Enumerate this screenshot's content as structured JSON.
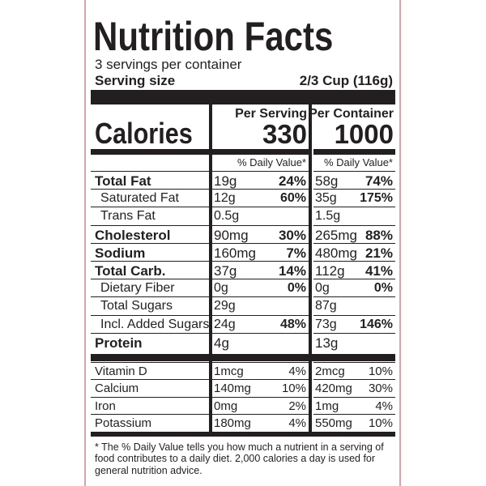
{
  "title": "Nutrition Facts",
  "servings": "3 servings per container",
  "serving_size": {
    "label": "Serving size",
    "value": "2/3 Cup (116g)"
  },
  "calories_label": "Calories",
  "columns": [
    {
      "heading": "Per Serving",
      "calories": "330",
      "dv_header": "% Daily Value*"
    },
    {
      "heading": "Per Container",
      "calories": "1000",
      "dv_header": "% Daily Value*"
    }
  ],
  "nutrients": [
    {
      "label": "Total Fat",
      "bold": true,
      "indent": false,
      "serving": [
        "19g",
        "24%"
      ],
      "container": [
        "58g",
        "74%"
      ]
    },
    {
      "label": "Saturated Fat",
      "bold": false,
      "indent": true,
      "serving": [
        "12g",
        "60%"
      ],
      "container": [
        "35g",
        "175%"
      ]
    },
    {
      "label": "Trans Fat",
      "bold": false,
      "indent": true,
      "serving": [
        "0.5g"
      ],
      "container": [
        "1.5g"
      ]
    },
    {
      "label": "Cholesterol",
      "bold": true,
      "indent": false,
      "serving": [
        "90mg",
        "30%"
      ],
      "container": [
        "265mg",
        "88%"
      ]
    },
    {
      "label": "Sodium",
      "bold": true,
      "indent": false,
      "serving": [
        "160mg",
        "7%"
      ],
      "container": [
        "480mg",
        "21%"
      ]
    },
    {
      "label": "Total Carb.",
      "bold": true,
      "indent": false,
      "serving": [
        "37g",
        "14%"
      ],
      "container": [
        "112g",
        "41%"
      ]
    },
    {
      "label": "Dietary Fiber",
      "bold": false,
      "indent": true,
      "serving": [
        "0g",
        "0%"
      ],
      "container": [
        "0g",
        "0%"
      ]
    },
    {
      "label": "Total Sugars",
      "bold": false,
      "indent": true,
      "serving": [
        "29g"
      ],
      "container": [
        "87g"
      ]
    },
    {
      "label": "Incl. Added Sugars",
      "bold": false,
      "indent": true,
      "serving": [
        "24g",
        "48%"
      ],
      "container": [
        "73g",
        "146%"
      ]
    },
    {
      "label": "Protein",
      "bold": true,
      "indent": false,
      "serving": [
        "4g"
      ],
      "container": [
        "13g"
      ]
    }
  ],
  "vitamins": [
    {
      "label": "Vitamin D",
      "serving": [
        "1mcg",
        "4%"
      ],
      "container": [
        "2mcg",
        "10%"
      ]
    },
    {
      "label": "Calcium",
      "serving": [
        "140mg",
        "10%"
      ],
      "container": [
        "420mg",
        "30%"
      ]
    },
    {
      "label": "Iron",
      "serving": [
        "0mg",
        "2%"
      ],
      "container": [
        "1mg",
        "4%"
      ]
    },
    {
      "label": "Potassium",
      "serving": [
        "180mg",
        "4%"
      ],
      "container": [
        "550mg",
        "10%"
      ]
    }
  ],
  "footnote": "* The % Daily Value tells you how much a nutrient in a serving of food contributes to a daily diet. 2,000 calories a day is used for general nutrition advice."
}
